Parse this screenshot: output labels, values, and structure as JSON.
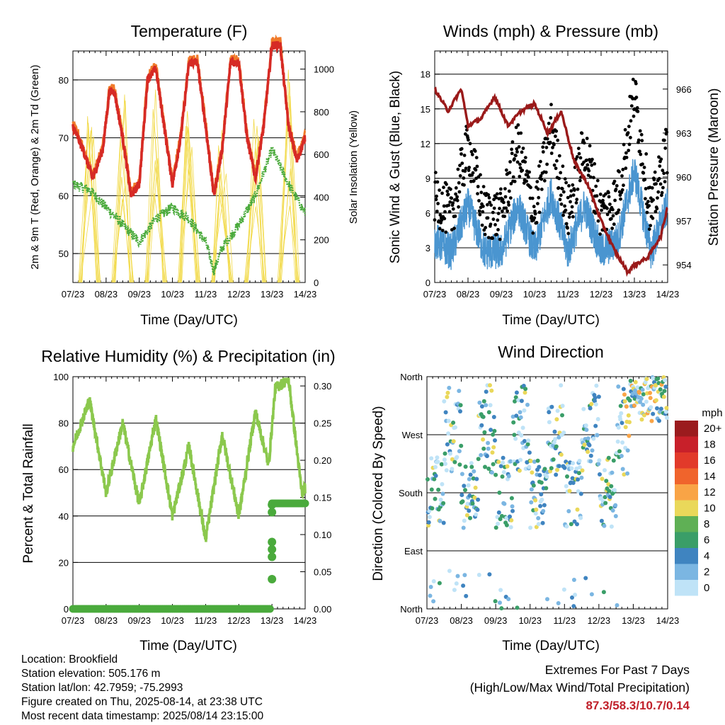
{
  "x_ticks": [
    "07/23",
    "08/23",
    "09/23",
    "10/23",
    "11/23",
    "12/23",
    "13/23",
    "14/23"
  ],
  "x_label": "Time (Day/UTC)",
  "panels": {
    "temperature": {
      "title": "Temperature (F)",
      "y_label": "2m & 9m T (Red, Orange) & 2m Td (Green)",
      "y2_label": "Solar Insolation (Yellow)",
      "y_ticks": [
        "50",
        "60",
        "70",
        "80"
      ],
      "y2_ticks": [
        "0",
        "200",
        "400",
        "600",
        "800",
        "1000"
      ]
    },
    "winds": {
      "title": "Winds (mph) & Pressure (mb)",
      "y_label": "Sonic Wind & Gust (Blue, Black)",
      "y2_label": "Station Pressure (Maroon)",
      "y_ticks": [
        "0",
        "3",
        "6",
        "9",
        "12",
        "15",
        "18"
      ],
      "y2_ticks": [
        "954",
        "957",
        "960",
        "963",
        "966"
      ]
    },
    "humidity": {
      "title": "Relative Humidity (%) & Precipitation (in)",
      "y_label": "Percent & Total Rainfall",
      "y_ticks": [
        "0",
        "20",
        "40",
        "60",
        "80",
        "100"
      ],
      "y2_ticks": [
        "0.00",
        "0.05",
        "0.10",
        "0.15",
        "0.20",
        "0.25",
        "0.30"
      ]
    },
    "direction": {
      "title": "Wind Direction",
      "y_label": "Direction (Colored By Speed)",
      "y_ticks": [
        "North",
        "East",
        "South",
        "West",
        "North"
      ],
      "legend_title": "mph",
      "legend_labels": [
        "20+",
        "18",
        "16",
        "14",
        "12",
        "10",
        "8",
        "6",
        "4",
        "2",
        "0"
      ],
      "legend_colors": [
        "#9b1b1e",
        "#c8202a",
        "#e23a2a",
        "#f0642c",
        "#f9a446",
        "#ead85a",
        "#5fb055",
        "#3a9e68",
        "#3f84c0",
        "#7bb6e2",
        "#bfe3f7"
      ]
    }
  },
  "footer": {
    "location": "Location: Brookfield",
    "elevation": "Station elevation: 505.176 m",
    "latlon": "Station lat/lon: 42.7959; -75.2993",
    "created": "Figure created on Thu, 2025-08-14, at 23:38 UTC",
    "recent": "Most recent data timestamp: 2025/08/14 23:15:00"
  },
  "extremes": {
    "line1": "Extremes For Past 7 Days",
    "line2": "(High/Low/Max Wind/Total Precipitation)",
    "values": "87.3/58.3/10.7/0.14"
  },
  "chart_data": [
    {
      "type": "line",
      "x_unit": "days since 07/23 00 UTC",
      "series": [
        {
          "color": "#d62a25",
          "x": [
            0,
            0.3,
            0.6,
            0.9,
            1.1,
            1.25,
            1.5,
            1.75,
            2.0,
            2.25,
            2.5,
            2.75,
            3.0,
            3.25,
            3.5,
            3.75,
            4.0,
            4.25,
            4.5,
            4.75,
            5.0,
            5.25,
            5.5,
            5.75,
            6.0,
            6.25,
            6.5,
            6.75,
            7.0
          ],
          "y": [
            72,
            68,
            63,
            68,
            78,
            78,
            70,
            60,
            62,
            80,
            82,
            72,
            62,
            70,
            83,
            83,
            72,
            60,
            68,
            83,
            83,
            70,
            63,
            72,
            86,
            86,
            72,
            66,
            70
          ]
        },
        {
          "color": "#4aaa3c",
          "x": [
            0,
            0.5,
            1,
            1.5,
            2,
            2.5,
            3,
            3.5,
            4,
            4.25,
            4.5,
            5,
            5.5,
            6,
            6.5,
            7
          ],
          "y": [
            62,
            61,
            58,
            55,
            52,
            56,
            58,
            56,
            52,
            47,
            51,
            55,
            60,
            68,
            62,
            57
          ]
        },
        {
          "color": "#f2da4a",
          "x": [
            0.5,
            1.5,
            2.5,
            3.5,
            4.5,
            5.5,
            6.5
          ],
          "y": [
            900,
            930,
            920,
            910,
            820,
            980,
            1000
          ]
        }
      ]
    },
    {
      "type": "line",
      "series": [
        {
          "color": "#9a1a1a",
          "x": [
            0,
            0.4,
            0.8,
            1.0,
            1.4,
            1.8,
            2.2,
            2.6,
            3.0,
            3.4,
            3.8,
            4.2,
            4.6,
            5.0,
            5.4,
            5.8,
            6.0,
            6.4,
            6.8,
            7.0
          ],
          "y": [
            966,
            964.5,
            966,
            963.5,
            964,
            965.5,
            963.5,
            964.5,
            965,
            963,
            964.5,
            961,
            959.5,
            957,
            955,
            953.5,
            954,
            954.5,
            956,
            958
          ]
        },
        {
          "color": "#4a95d0",
          "x": [
            0,
            0.5,
            1,
            1.5,
            2,
            2.5,
            3,
            3.5,
            4,
            4.5,
            5,
            5.5,
            6,
            6.5,
            7
          ],
          "y": [
            3,
            2,
            6,
            2,
            2,
            6,
            2,
            7,
            2,
            6,
            2,
            3,
            9,
            2,
            6
          ]
        }
      ]
    },
    {
      "type": "line",
      "series": [
        {
          "color": "#8bc84d",
          "x": [
            0,
            0.5,
            1,
            1.5,
            2,
            2.5,
            3,
            3.5,
            4,
            4.5,
            5,
            5.5,
            5.9,
            6.1,
            6.5,
            6.9,
            7
          ],
          "y": [
            70,
            90,
            50,
            80,
            45,
            82,
            40,
            70,
            30,
            75,
            40,
            85,
            62,
            95,
            99,
            50,
            52
          ]
        },
        {
          "color": "#4aaa3c",
          "x": [
            0,
            5.9,
            6.0,
            6.05,
            6.1,
            7.0
          ],
          "y": [
            0,
            0,
            0.04,
            0.08,
            0.14,
            0.14
          ]
        }
      ]
    },
    {
      "type": "scatter",
      "y_range": [
        0,
        360
      ],
      "note": "wind direction in degrees colored by speed (mph)"
    }
  ]
}
